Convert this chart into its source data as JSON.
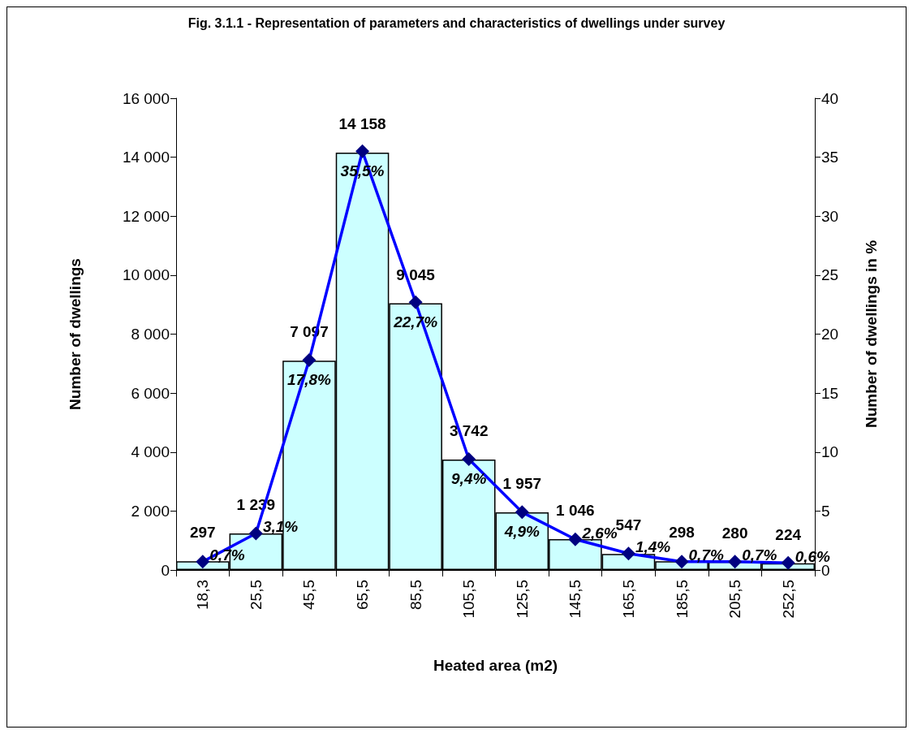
{
  "chart_data": {
    "type": "bar",
    "title": "Fig. 3.1.1 - Representation of parameters and characteristics of dwellings under survey",
    "xlabel": "Heated area (m2)",
    "ylabel": "Number of dwellings",
    "y2label": "Number of dwellings in %",
    "categories": [
      "18,3",
      "25,5",
      "45,5",
      "65,5",
      "85,5",
      "105,5",
      "125,5",
      "145,5",
      "165,5",
      "185,5",
      "205,5",
      "252,5"
    ],
    "series": [
      {
        "color": "#ccffff",
        "values": [
          297,
          1239,
          7097,
          14158,
          9045,
          3742,
          1957,
          1046,
          547,
          298,
          280,
          224
        ],
        "value_labels": [
          "297",
          "1 239",
          "7 097",
          "14 158",
          "9 045",
          "3 742",
          "1 957",
          "1 046",
          "547",
          "298",
          "280",
          "224"
        ]
      },
      {
        "type": "line",
        "axis": "y2",
        "color": "#0000ff",
        "values": [
          0.7,
          3.1,
          17.8,
          35.5,
          22.7,
          9.4,
          4.9,
          2.6,
          1.4,
          0.7,
          0.7,
          0.6
        ],
        "value_labels": [
          "0,7%",
          "3,1%",
          "17,8%",
          "35,5%",
          "22,7%",
          "9,4%",
          "4,9%",
          "2,6%",
          "1,4%",
          "0,7%",
          "0,7%",
          "0,6%"
        ]
      }
    ],
    "ylim": [
      0,
      16000
    ],
    "yticks": [
      {
        "value": 0,
        "label": "0"
      },
      {
        "value": 2000,
        "label": "2 000"
      },
      {
        "value": 4000,
        "label": "4 000"
      },
      {
        "value": 6000,
        "label": "6 000"
      },
      {
        "value": 8000,
        "label": "8 000"
      },
      {
        "value": 10000,
        "label": "10 000"
      },
      {
        "value": 12000,
        "label": "12 000"
      },
      {
        "value": 14000,
        "label": "14 000"
      },
      {
        "value": 16000,
        "label": "16 000"
      }
    ],
    "y2lim": [
      0,
      40
    ],
    "y2ticks": [
      0,
      5,
      10,
      15,
      20,
      25,
      30,
      35,
      40
    ],
    "grid": false,
    "marker": "diamond",
    "line_style": "solid"
  }
}
